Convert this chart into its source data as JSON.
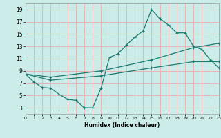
{
  "xlabel": "Humidex (Indice chaleur)",
  "bg_color": "#ccecea",
  "grid_color": "#e8b4b4",
  "line_color": "#1a7a6e",
  "xlim": [
    0,
    23
  ],
  "ylim": [
    2,
    20
  ],
  "xticks": [
    0,
    1,
    2,
    3,
    4,
    5,
    6,
    7,
    8,
    9,
    10,
    11,
    12,
    13,
    14,
    15,
    16,
    17,
    18,
    19,
    20,
    21,
    22,
    23
  ],
  "yticks": [
    3,
    5,
    7,
    9,
    11,
    13,
    15,
    17,
    19
  ],
  "line1_x": [
    0,
    1,
    2,
    3,
    4,
    5,
    6,
    7,
    8,
    9,
    10,
    11,
    12,
    13,
    14,
    15,
    16,
    17,
    18,
    19,
    20,
    21,
    22,
    23
  ],
  "line1_y": [
    8.5,
    7.2,
    6.3,
    6.2,
    5.2,
    4.4,
    4.2,
    3.0,
    3.0,
    6.2,
    11.2,
    11.8,
    13.2,
    14.5,
    15.5,
    19.0,
    17.5,
    16.5,
    15.2,
    15.2,
    13.0,
    12.5,
    10.8,
    9.5
  ],
  "line2_x": [
    0,
    3,
    9,
    15,
    20,
    23
  ],
  "line2_y": [
    8.5,
    7.5,
    8.2,
    9.5,
    10.5,
    10.5
  ],
  "line3_x": [
    0,
    3,
    9,
    15,
    20,
    23
  ],
  "line3_y": [
    8.5,
    8.0,
    9.0,
    10.8,
    12.8,
    13.5
  ]
}
